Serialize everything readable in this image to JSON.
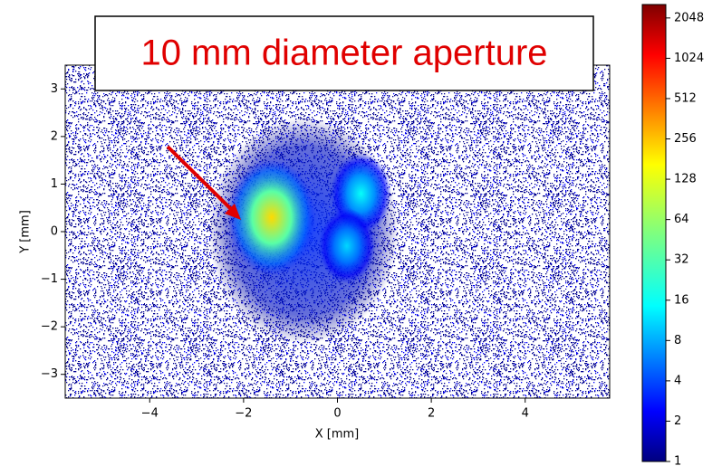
{
  "chart_data": {
    "type": "heatmap",
    "annotation": "10 mm diameter aperture",
    "xlabel": "X [mm]",
    "ylabel": "Y [mm]",
    "xlim": [
      -5.8,
      5.8
    ],
    "ylim": [
      -3.5,
      3.5
    ],
    "xticks": [
      {
        "value": -4,
        "label": "−4"
      },
      {
        "value": -2,
        "label": "−2"
      },
      0,
      2,
      4
    ],
    "yticks": [
      {
        "value": -3,
        "label": "−3"
      },
      {
        "value": -2,
        "label": "−2"
      },
      {
        "value": -1,
        "label": "−1"
      },
      0,
      1,
      2,
      3
    ],
    "colorbar_scale": "log2",
    "clim": [
      1,
      2580
    ],
    "cticks": [
      1,
      2,
      4,
      8,
      16,
      32,
      64,
      128,
      256,
      512,
      1024,
      2048
    ],
    "spots": [
      {
        "x": -1.4,
        "y": 0.3,
        "value": 180
      },
      {
        "x": 0.5,
        "y": 0.8,
        "value": 20
      },
      {
        "x": 0.2,
        "y": -0.3,
        "value": 14
      }
    ]
  }
}
